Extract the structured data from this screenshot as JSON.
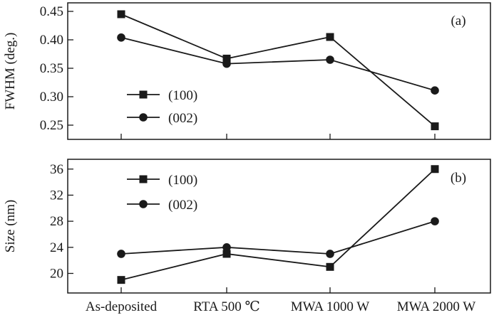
{
  "chart_data": [
    {
      "type": "line",
      "panel_tag": "(a)",
      "ylabel": "FWHM (deg.)",
      "ylim": [
        0.225,
        0.465
      ],
      "yticks": [
        "0.25",
        "0.30",
        "0.35",
        "0.40",
        "0.45"
      ],
      "legend_position": "lower-left",
      "categories": [
        "As-deposited",
        "RTA 500 ℃",
        "MWA 1000 W",
        "MWA 2000 W"
      ],
      "series": [
        {
          "name": "(100)",
          "marker": "square",
          "values": [
            0.445,
            0.367,
            0.405,
            0.248
          ]
        },
        {
          "name": "(002)",
          "marker": "circle",
          "values": [
            0.404,
            0.358,
            0.365,
            0.311
          ]
        }
      ]
    },
    {
      "type": "line",
      "panel_tag": "(b)",
      "ylabel": "Size (nm)",
      "ylim": [
        17,
        37.5
      ],
      "yticks": [
        "20",
        "24",
        "28",
        "32",
        "36"
      ],
      "legend_position": "upper-left",
      "categories": [
        "As-deposited",
        "RTA 500 ℃",
        "MWA 1000 W",
        "MWA 2000 W"
      ],
      "series": [
        {
          "name": "(100)",
          "marker": "square",
          "values": [
            19.0,
            23.0,
            21.0,
            36.0
          ]
        },
        {
          "name": "(002)",
          "marker": "circle",
          "values": [
            23.0,
            24.0,
            23.0,
            28.0
          ]
        }
      ]
    }
  ]
}
